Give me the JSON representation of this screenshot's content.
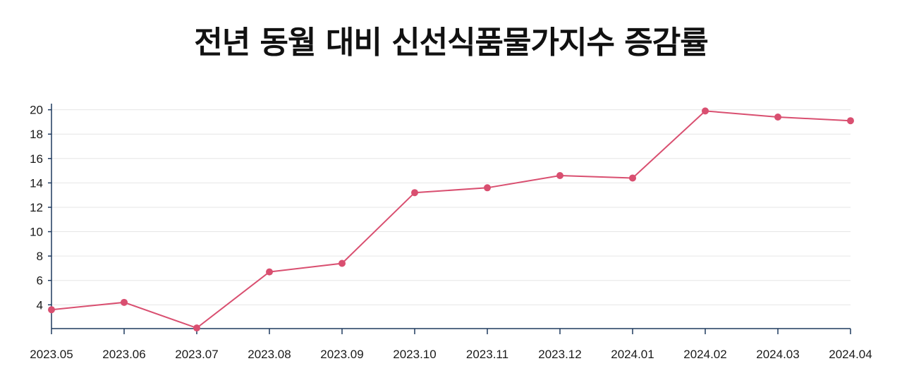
{
  "chart_data": {
    "type": "line",
    "title": "전년 동월 대비 신선식품물가지수 증감률",
    "xlabel": "",
    "ylabel": "",
    "categories": [
      "2023.05",
      "2023.06",
      "2023.07",
      "2023.08",
      "2023.09",
      "2023.10",
      "2023.11",
      "2023.12",
      "2024.01",
      "2024.02",
      "2024.03",
      "2024.04"
    ],
    "series": [
      {
        "values": [
          3.6,
          4.2,
          2.1,
          6.7,
          7.4,
          13.2,
          13.6,
          14.6,
          14.4,
          19.9,
          19.4,
          19.1
        ]
      }
    ],
    "yticks": [
      4,
      6,
      8,
      10,
      12,
      14,
      16,
      18,
      20
    ],
    "ylim": [
      2.05,
      20.5
    ],
    "grid": true,
    "colors": {
      "line": "#d94f70",
      "axis": "#1f3a5f",
      "grid": "#e6e6e6"
    }
  }
}
